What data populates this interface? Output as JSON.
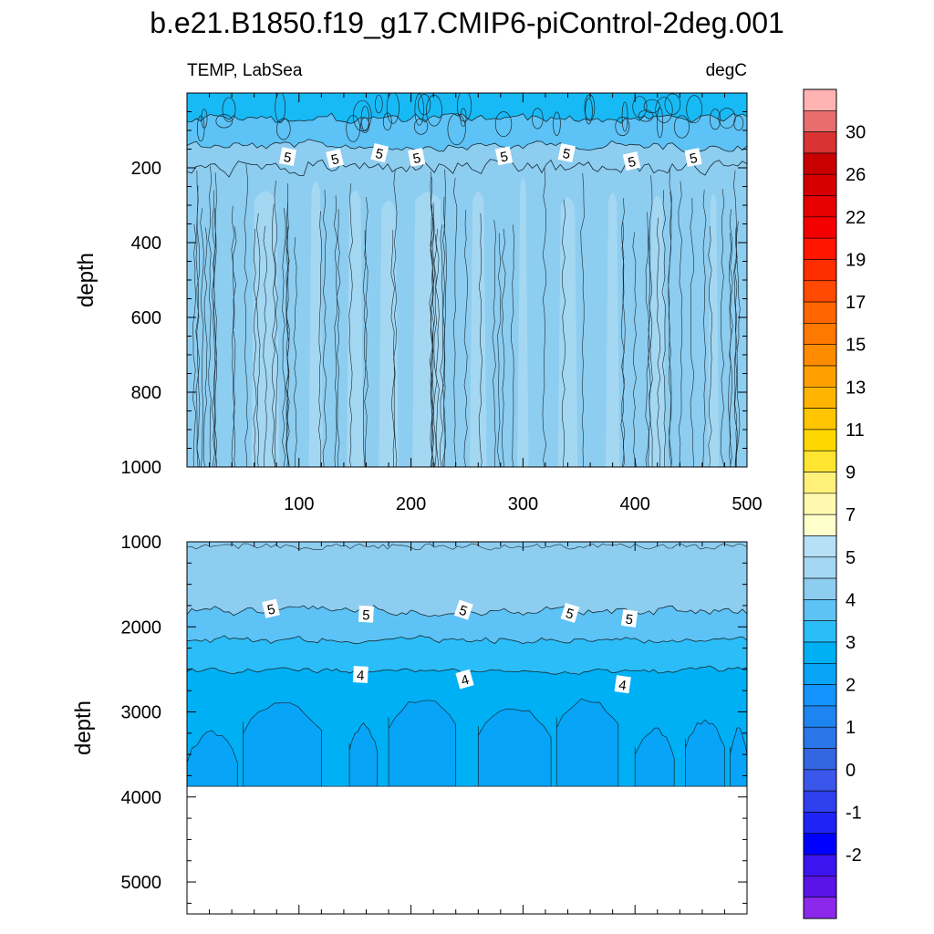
{
  "title": "b.e21.B1850.f19_g17.CMIP6-piControl-2deg.001",
  "chart_data": [
    {
      "type": "contour",
      "panel": "upper",
      "left_label": "TEMP, LabSea",
      "right_label": "degC",
      "ylabel": "depth",
      "xlim": [
        0,
        500
      ],
      "ylim": [
        1000,
        0
      ],
      "x_ticks": [
        100,
        200,
        300,
        400,
        500
      ],
      "y_ticks": [
        200,
        400,
        600,
        800,
        1000
      ],
      "contour_labels": [
        {
          "x": 90,
          "y": 170,
          "text": "5"
        },
        {
          "x": 132,
          "y": 175,
          "text": "5"
        },
        {
          "x": 172,
          "y": 160,
          "text": "5"
        },
        {
          "x": 205,
          "y": 172,
          "text": "5"
        },
        {
          "x": 283,
          "y": 168,
          "text": "5"
        },
        {
          "x": 339,
          "y": 160,
          "text": "5"
        },
        {
          "x": 397,
          "y": 182,
          "text": "5"
        },
        {
          "x": 452,
          "y": 172,
          "text": "5"
        }
      ]
    },
    {
      "type": "contour",
      "panel": "lower",
      "ylabel": "depth",
      "xlim": [
        0,
        500
      ],
      "ylim": [
        5375,
        1000
      ],
      "y_ticks": [
        1000,
        2000,
        3000,
        4000,
        5000
      ],
      "bottom_depth": 3875,
      "contour_labels": [
        {
          "x": 75,
          "y": 1785,
          "text": "5"
        },
        {
          "x": 160,
          "y": 1850,
          "text": "5"
        },
        {
          "x": 247,
          "y": 1800,
          "text": "5"
        },
        {
          "x": 342,
          "y": 1835,
          "text": "5"
        },
        {
          "x": 395,
          "y": 1900,
          "text": "5"
        },
        {
          "x": 155,
          "y": 2560,
          "text": "4"
        },
        {
          "x": 248,
          "y": 2615,
          "text": "4"
        },
        {
          "x": 389,
          "y": 2675,
          "text": "4"
        }
      ]
    }
  ],
  "colorbar": {
    "labels": [
      "30",
      "26",
      "22",
      "19",
      "17",
      "15",
      "13",
      "11",
      "9",
      "7",
      "5",
      "4",
      "3",
      "2",
      "1",
      "0",
      "-1",
      "-2"
    ],
    "colors_top_to_bottom": [
      "#FFB3B3",
      "#E86E6E",
      "#D93333",
      "#C80000",
      "#D70000",
      "#E60000",
      "#F50000",
      "#FF1500",
      "#FF2E00",
      "#FF4A00",
      "#FF6600",
      "#FF7800",
      "#FF8C00",
      "#FFA000",
      "#FFB400",
      "#FFC500",
      "#FFD700",
      "#FFE530",
      "#FFF07A",
      "#FFF9B0",
      "#FFFFCC",
      "#B5E0F5",
      "#A4D7F2",
      "#8DCDF0",
      "#5DC2F5",
      "#2BBDF7",
      "#00B0F5",
      "#07A4F7",
      "#1394FF",
      "#1E85F0",
      "#2A75E8",
      "#3366E0",
      "#3A56EB",
      "#2E40EE",
      "#1D24F3",
      "#0000FF",
      "#3C14F0",
      "#5A14E8",
      "#8C28EB"
    ]
  },
  "palette": {
    "depth_0_50": "#18BAF5",
    "depth_50_120": "#5DC2F5",
    "upper_main": "#8DCDF0",
    "upper_light": "#A4D7F2",
    "lower_main": "#8DCDF0",
    "band_5": "#5DC2F5",
    "band_4": "#2BBDF7",
    "band_3": "#00B0F5",
    "band_2": "#07A4F7"
  }
}
